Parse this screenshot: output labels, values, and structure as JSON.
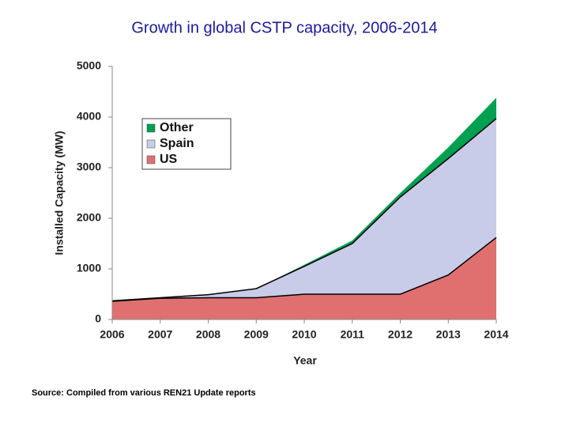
{
  "chart_data": {
    "type": "stacked_area",
    "title": "Growth in global CSTP capacity, 2006-2014",
    "xlabel": "Year",
    "ylabel": "Installed Capacity (MW)",
    "source": "Source: Compiled from various REN21 Update reports",
    "x": [
      2006,
      2007,
      2008,
      2009,
      2010,
      2011,
      2012,
      2013,
      2014
    ],
    "xlim": [
      2006,
      2014
    ],
    "xticks": [
      2006,
      2007,
      2008,
      2009,
      2010,
      2011,
      2012,
      2013,
      2014
    ],
    "ylim": [
      0,
      5000
    ],
    "yticks": [
      0,
      1000,
      2000,
      3000,
      4000,
      5000
    ],
    "legend": "upper left",
    "series": [
      {
        "name": "US",
        "color": "#e07070",
        "edgecolor": "#000000",
        "values": [
          360,
          420,
          430,
          430,
          500,
          500,
          500,
          880,
          1620
        ]
      },
      {
        "name": "Spain",
        "color": "#c8cce8",
        "edgecolor": "#000000",
        "values": [
          10,
          10,
          60,
          180,
          550,
          1000,
          1920,
          2300,
          2350
        ]
      },
      {
        "name": "Other",
        "color": "#00a050",
        "values": [
          0,
          0,
          0,
          0,
          30,
          60,
          80,
          220,
          410
        ]
      }
    ]
  }
}
